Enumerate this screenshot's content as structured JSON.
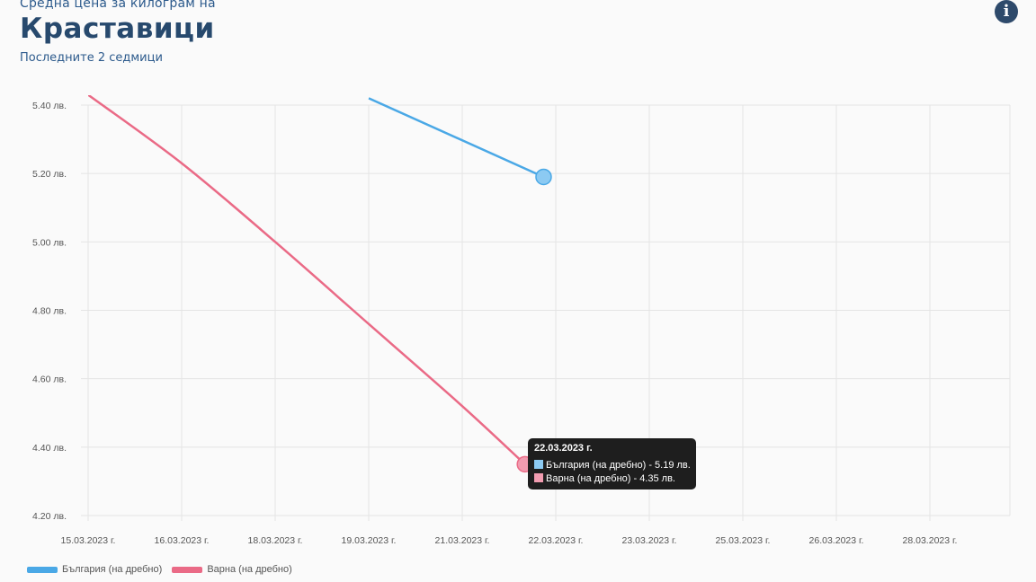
{
  "header": {
    "subtitle": "Средна цена за килограм на",
    "title": "Краставици",
    "note": "Последните 2 седмици"
  },
  "info_icon": {
    "name": "info-icon",
    "glyph": "i"
  },
  "colors": {
    "blue": "#4aa8e6",
    "blue_fill": "#8ccaf2",
    "pink": "#ea6a86",
    "pink_fill": "#f19cb0"
  },
  "tooltip": {
    "title": "22.03.2023 г.",
    "rows": [
      {
        "label": "България (на дребно) - 5.19 лв.",
        "color": "#8ccaf2"
      },
      {
        "label": "Варна (на дребно) - 4.35 лв.",
        "color": "#f19cb0"
      }
    ]
  },
  "legend": [
    {
      "label": "България (на дребно)",
      "color": "#4aa8e6"
    },
    {
      "label": "Варна (на дребно)",
      "color": "#ea6a86"
    }
  ],
  "chart_data": {
    "type": "line",
    "categories": [
      "15.03.2023 г.",
      "16.03.2023 г.",
      "18.03.2023 г.",
      "19.03.2023 г.",
      "21.03.2023 г.",
      "22.03.2023 г.",
      "23.03.2023 г.",
      "25.03.2023 г.",
      "26.03.2023 г.",
      "28.03.2023 г."
    ],
    "y_ticks": [
      "4.20 лв.",
      "4.40 лв.",
      "4.60 лв.",
      "4.80 лв.",
      "5.00 лв.",
      "5.20 лв.",
      "5.40 лв."
    ],
    "ylim": [
      4.2,
      5.4
    ],
    "y_unit": "лв.",
    "series": [
      {
        "name": "България (на дребно)",
        "color": "#4aa8e6",
        "points": [
          [
            3,
            5.42
          ],
          [
            4.87,
            5.19
          ]
        ]
      },
      {
        "name": "Варна (на дребно)",
        "color": "#ea6a86",
        "points": [
          [
            0,
            5.43
          ],
          [
            1,
            5.23
          ],
          [
            2,
            5.0
          ],
          [
            3,
            4.76
          ],
          [
            4,
            4.52
          ],
          [
            4.67,
            4.35
          ]
        ]
      }
    ],
    "active_point": {
      "x": 4.67,
      "values": [
        5.19,
        4.35
      ]
    },
    "grid": true,
    "legend_position": "bottom-left"
  }
}
